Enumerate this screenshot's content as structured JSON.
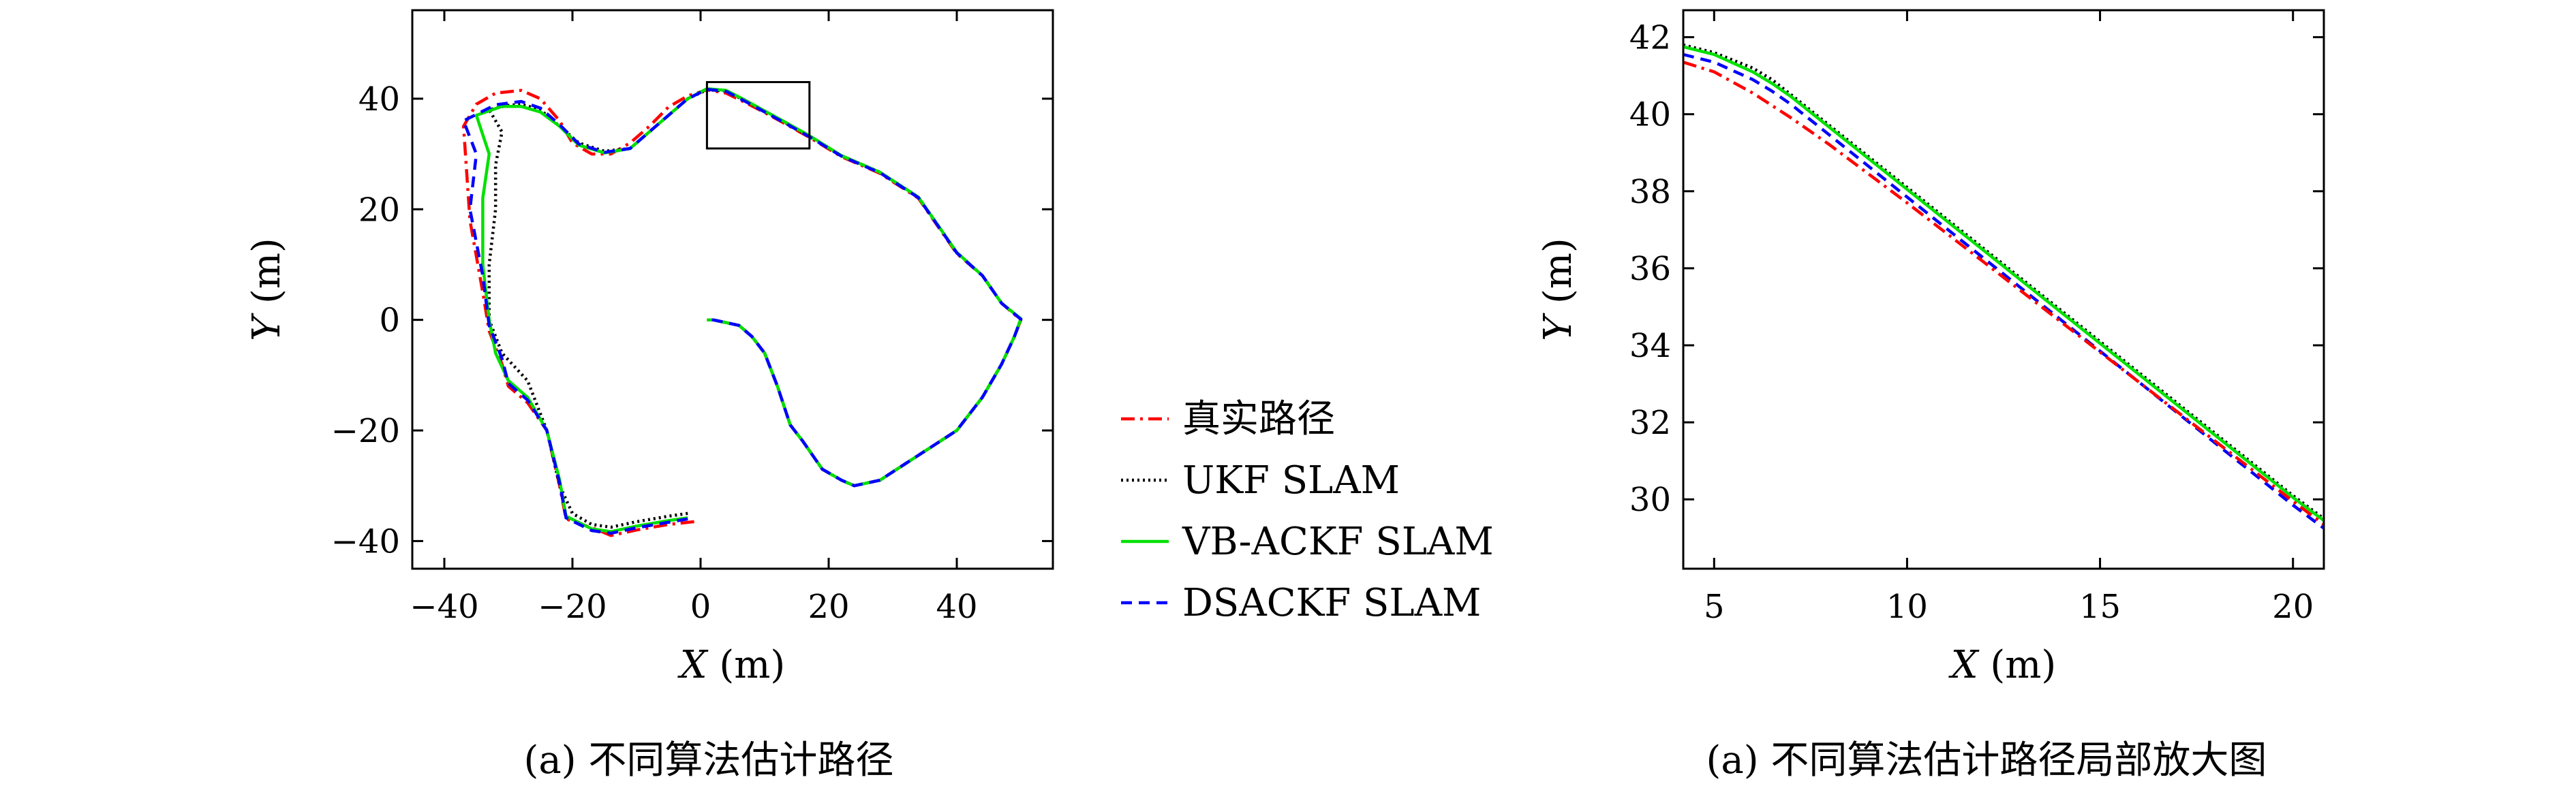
{
  "chart_data": [
    {
      "type": "line",
      "caption": "(a) 不同算法估计路径",
      "xlabel_var": "X",
      "xlabel_unit": "(m)",
      "ylabel_var": "Y",
      "ylabel_unit": "(m)",
      "xlim": [
        -45,
        55
      ],
      "ylim": [
        -45,
        56
      ],
      "xticks": [
        -40,
        -20,
        0,
        20,
        40
      ],
      "yticks": [
        -40,
        -20,
        0,
        20,
        40
      ],
      "zoom_box": {
        "x": [
          1,
          17
        ],
        "y": [
          31,
          43
        ]
      },
      "series": [
        {
          "name": "真实路径",
          "color": "#ff0000",
          "dash": "20,8,4,8",
          "x": [
            -1,
            -5,
            -10,
            -14,
            -16,
            -21,
            -22,
            -24,
            -27,
            -30,
            -31,
            -33,
            -34,
            -36,
            -37,
            -35,
            -32,
            -28,
            -25,
            -22,
            -20,
            -17,
            -14,
            -11,
            -8,
            -5,
            -2,
            1,
            4,
            7,
            10,
            13,
            17,
            22,
            28,
            34,
            40,
            44,
            47,
            50,
            49,
            47,
            44,
            40,
            36,
            32,
            28,
            24,
            22,
            19,
            16,
            14,
            12,
            10,
            8,
            6,
            4,
            2,
            1
          ],
          "y": [
            -36.5,
            -37,
            -38,
            -39,
            -38,
            -36,
            -30,
            -20,
            -15,
            -12,
            -8,
            -2,
            5,
            18,
            35,
            39,
            41,
            41.5,
            40,
            36,
            32,
            30,
            30,
            32,
            35,
            38.5,
            40.5,
            41.6,
            41,
            39.3,
            37.5,
            35.6,
            33,
            29.5,
            26.5,
            22,
            12,
            8,
            3,
            0,
            -3,
            -8,
            -14,
            -20,
            -23,
            -26,
            -29,
            -30,
            -29,
            -27,
            -22,
            -19,
            -12,
            -6,
            -3,
            -1,
            -0.5,
            0,
            0
          ]
        },
        {
          "name": "UKF SLAM",
          "color": "#000000",
          "dash": "3,5",
          "x": [
            -2,
            -5,
            -10,
            -14,
            -17,
            -20,
            -22,
            -24,
            -27,
            -31,
            -33,
            -33,
            -32,
            -32,
            -31,
            -33,
            -30,
            -28,
            -25,
            -22,
            -19,
            -15,
            -11,
            -8,
            -5,
            -2,
            1,
            4,
            7,
            10,
            13,
            17,
            22,
            28,
            34,
            40,
            44,
            47,
            50,
            49,
            47,
            44,
            40,
            36,
            32,
            28,
            24,
            22,
            19,
            16,
            14,
            12,
            10,
            8,
            6,
            4,
            2,
            1
          ],
          "y": [
            -35,
            -35.5,
            -36.5,
            -37.5,
            -37,
            -35,
            -30,
            -20,
            -11,
            -6,
            0,
            10,
            20,
            28,
            34,
            38,
            38.8,
            39,
            38,
            35,
            32,
            30.5,
            31,
            34,
            37,
            40,
            41.6,
            41.4,
            39.6,
            37.7,
            35.8,
            33.2,
            29.7,
            26.7,
            22.2,
            12.2,
            8,
            3,
            0.2,
            -3,
            -8,
            -14,
            -20,
            -23,
            -26,
            -29,
            -30,
            -29,
            -27,
            -22,
            -19,
            -12,
            -6,
            -3,
            -1,
            -0.5,
            0,
            0
          ]
        },
        {
          "name": "VB-ACKF SLAM",
          "color": "#00e000",
          "dash": "",
          "x": [
            -2,
            -5,
            -10,
            -14,
            -17,
            -21,
            -22,
            -24,
            -27,
            -30,
            -32,
            -33,
            -34,
            -34,
            -33,
            -35,
            -31,
            -28,
            -25,
            -22,
            -19,
            -15,
            -11,
            -8,
            -5,
            -2,
            1,
            4,
            7,
            10,
            13,
            17,
            22,
            28,
            34,
            40,
            44,
            47,
            50,
            49,
            47,
            44,
            40,
            36,
            32,
            28,
            24,
            22,
            19,
            16,
            14,
            12,
            10,
            8,
            6,
            4,
            2,
            1
          ],
          "y": [
            -35.8,
            -36.3,
            -37.3,
            -38.3,
            -37.8,
            -35.5,
            -29,
            -20,
            -14,
            -11,
            -6,
            0,
            10,
            22,
            30,
            37,
            38.6,
            38.6,
            37.6,
            35,
            31.6,
            30.2,
            31,
            34,
            37,
            40,
            41.8,
            41.5,
            39.7,
            37.8,
            35.9,
            33.3,
            29.7,
            26.7,
            22.2,
            12.2,
            8,
            3,
            0.2,
            -3,
            -8,
            -14,
            -20,
            -23,
            -26,
            -29,
            -30,
            -29,
            -27,
            -22,
            -19,
            -12,
            -6,
            -3,
            -1,
            -0.5,
            0,
            0
          ]
        },
        {
          "name": "DSACKF SLAM",
          "color": "#0000ff",
          "dash": "16,10",
          "x": [
            -2,
            -5,
            -10,
            -14,
            -17,
            -21,
            -22,
            -24,
            -27,
            -30,
            -31,
            -33,
            -34,
            -36,
            -35,
            -37,
            -32,
            -28,
            -25,
            -22,
            -19,
            -15,
            -11,
            -8,
            -5,
            -2,
            1,
            4,
            7,
            10,
            13,
            17,
            22,
            28,
            34,
            40,
            44,
            47,
            50,
            49,
            47,
            44,
            40,
            36,
            32,
            28,
            24,
            22,
            19,
            16,
            14,
            12,
            10,
            8,
            6,
            4,
            2,
            1
          ],
          "y": [
            -36,
            -36.6,
            -37.6,
            -38.6,
            -38.1,
            -35.8,
            -29.5,
            -20,
            -14.5,
            -11.5,
            -7,
            -1,
            8,
            20,
            30,
            36,
            38.9,
            39.5,
            38.3,
            35.3,
            31.8,
            30.3,
            31,
            34,
            37,
            40,
            41.7,
            41.3,
            39.5,
            37.6,
            35.7,
            33.1,
            29.6,
            26.6,
            22.1,
            12.1,
            8,
            3,
            0.1,
            -3,
            -8,
            -14,
            -20,
            -23,
            -26,
            -29,
            -30,
            -29,
            -27,
            -22,
            -19,
            -12,
            -6,
            -3,
            -1,
            -0.5,
            0,
            0
          ]
        }
      ]
    },
    {
      "type": "line",
      "caption": "(a) 不同算法估计路径局部放大图",
      "xlabel_var": "X",
      "xlabel_unit": "(m)",
      "ylabel_var": "Y",
      "ylabel_unit": "(m)",
      "xlim": [
        4.2,
        20.8
      ],
      "ylim": [
        28.2,
        42.7
      ],
      "xticks": [
        5,
        10,
        15,
        20
      ],
      "yticks": [
        30,
        32,
        34,
        36,
        38,
        40,
        42
      ],
      "series": [
        {
          "name": "UKF SLAM",
          "color": "#000000",
          "dash": "3,5",
          "x": [
            4.2,
            5,
            6,
            6.5,
            7,
            8,
            10,
            12,
            14,
            16,
            18,
            20,
            20.8
          ],
          "y": [
            41.8,
            41.6,
            41.2,
            40.9,
            40.5,
            39.7,
            38.1,
            36.5,
            34.9,
            33.3,
            31.7,
            30.1,
            29.5
          ]
        },
        {
          "name": "VB-ACKF SLAM",
          "color": "#00e000",
          "dash": "",
          "x": [
            4.2,
            5,
            6,
            6.5,
            7,
            8,
            10,
            12,
            14,
            16,
            18,
            20,
            20.8
          ],
          "y": [
            41.75,
            41.55,
            41.1,
            40.8,
            40.45,
            39.65,
            38.05,
            36.45,
            34.85,
            33.25,
            31.65,
            30.05,
            29.45
          ]
        },
        {
          "name": "DSACKF SLAM",
          "color": "#0000ff",
          "dash": "16,10",
          "x": [
            4.2,
            5,
            6,
            6.5,
            7,
            8,
            10,
            12,
            14,
            16,
            18,
            20,
            20.8
          ],
          "y": [
            41.55,
            41.35,
            40.9,
            40.6,
            40.25,
            39.45,
            37.85,
            36.25,
            34.65,
            33.05,
            31.45,
            29.85,
            29.25
          ]
        },
        {
          "name": "真实路径",
          "color": "#ff0000",
          "dash": "20,8,4,8",
          "x": [
            4.2,
            5,
            6,
            7,
            8,
            10,
            12,
            14,
            16,
            18,
            20,
            20.8
          ],
          "y": [
            41.35,
            41.1,
            40.55,
            39.9,
            39.2,
            37.7,
            36.15,
            34.6,
            33.05,
            31.5,
            29.95,
            29.35
          ]
        }
      ]
    }
  ],
  "legend": {
    "entries": [
      {
        "label": "真实路径",
        "color": "#ff0000",
        "dash": "20,8,4,8"
      },
      {
        "label": "UKF SLAM",
        "color": "#000000",
        "dash": "3,5"
      },
      {
        "label": "VB-ACKF SLAM",
        "color": "#00e000",
        "dash": ""
      },
      {
        "label": "DSACKF SLAM",
        "color": "#0000ff",
        "dash": "16,10"
      }
    ]
  }
}
